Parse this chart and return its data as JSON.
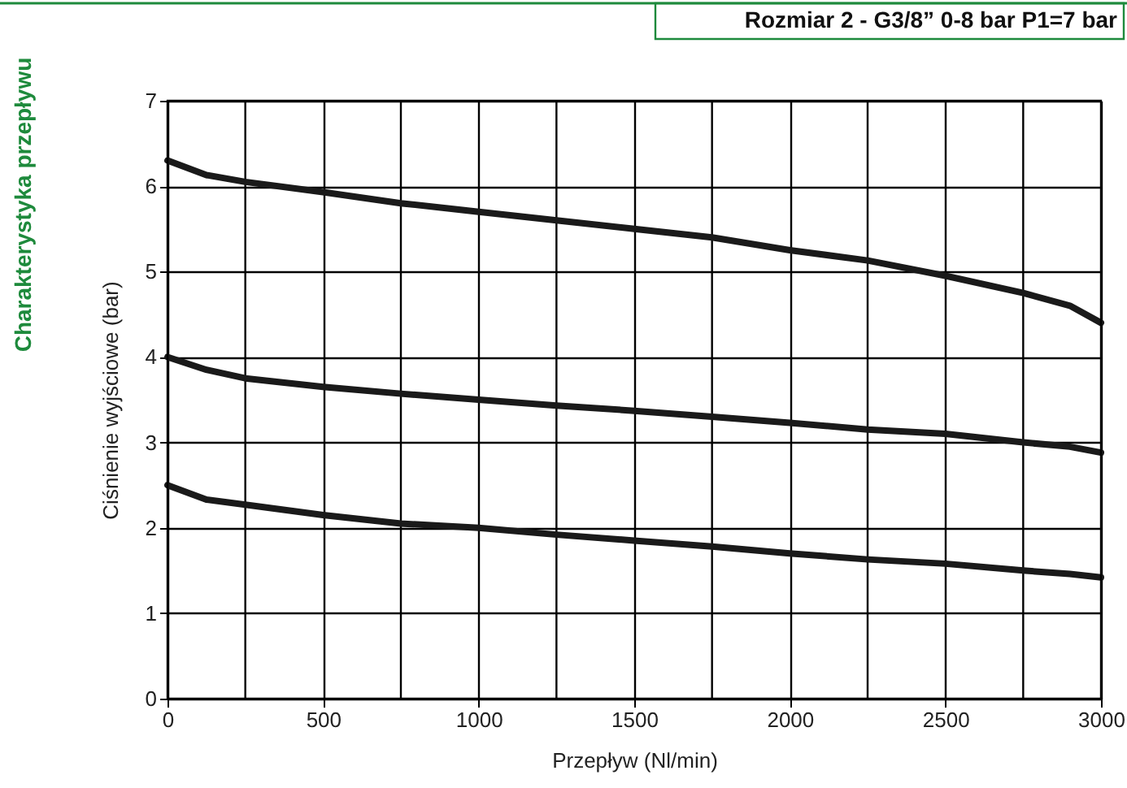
{
  "chart_data": {
    "type": "line",
    "title": "Charakterystyka przepływu",
    "subtitle": "Rozmiar 2 - G3/8” 0-8 bar P1=7 bar",
    "xlabel": "Przepływ (Nl/min)",
    "ylabel": "Ciśnienie wyjściowe (bar)",
    "x": [
      0,
      125,
      250,
      500,
      750,
      1000,
      1250,
      1500,
      1750,
      2000,
      2250,
      2500,
      2750,
      2900,
      3000
    ],
    "series": [
      {
        "color": "#1a1a1a",
        "values": [
          6.3,
          6.13,
          6.05,
          5.93,
          5.8,
          5.7,
          5.6,
          5.5,
          5.4,
          5.25,
          5.13,
          4.95,
          4.75,
          4.6,
          4.4
        ]
      },
      {
        "color": "#1a1a1a",
        "values": [
          4.0,
          3.85,
          3.75,
          3.65,
          3.57,
          3.5,
          3.43,
          3.37,
          3.3,
          3.23,
          3.15,
          3.1,
          3.0,
          2.95,
          2.88
        ]
      },
      {
        "color": "#1a1a1a",
        "values": [
          2.5,
          2.33,
          2.27,
          2.15,
          2.05,
          2.0,
          1.92,
          1.85,
          1.78,
          1.7,
          1.63,
          1.58,
          1.5,
          1.46,
          1.42
        ]
      }
    ],
    "xlim": [
      0,
      3000
    ],
    "xticks": [
      0,
      500,
      1000,
      1500,
      2000,
      2500,
      3000
    ],
    "ylim": [
      0,
      7
    ],
    "yticks": [
      0,
      1,
      2,
      3,
      4,
      5,
      6,
      7
    ],
    "grid": true,
    "legend": false,
    "marker": "none",
    "line_style": "solid"
  }
}
